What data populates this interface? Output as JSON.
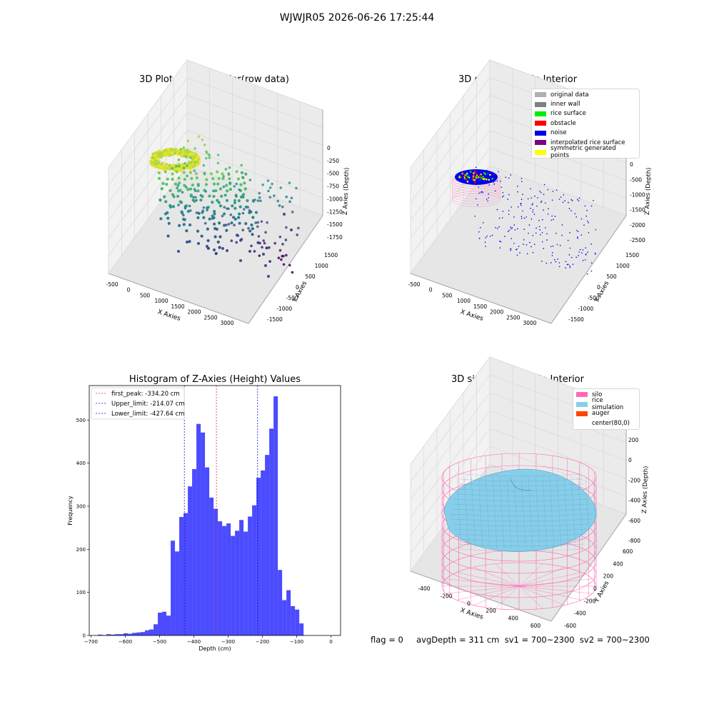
{
  "suptitle": "WJWJR05 2026-06-26 17:25:44",
  "footer": "flag = 0     avgDepth = 311 cm  sv1 = 700~2300  sv2 = 700~2300",
  "colors": {
    "hist_bar": "#4b4bff",
    "first_peak_line": "#e03030",
    "limit_line": "#1010d0",
    "silo": "#ff69b4",
    "rice": "#87ceeb",
    "auger": "#ff4500"
  },
  "chart_data": [
    {
      "type": "scatter",
      "title": "3D Plot of Silo Interior(row data)",
      "xlabel": "X Axies",
      "ylabel": "Y Axies",
      "zlabel": "Z Axies (Depth)",
      "x_ticks": [
        "-500",
        "0",
        "500",
        "1000",
        "1500",
        "2000",
        "2500",
        "3000"
      ],
      "y_ticks": [
        "-1500",
        "-1000",
        "-500",
        "0",
        "500",
        "1000",
        "1500"
      ],
      "z_ticks": [
        "0",
        "-250",
        "-500",
        "-750",
        "-1000",
        "-1250",
        "-1500",
        "-1750"
      ],
      "colormap": "viridis"
    },
    {
      "type": "scatter",
      "title": "3D classify of Silo Interior",
      "xlabel": "X Axies",
      "ylabel": "Y Axies",
      "zlabel": "Z Axies (Depth)",
      "x_ticks": [
        "-500",
        "0",
        "500",
        "1000",
        "1500",
        "2000",
        "2500",
        "3000"
      ],
      "y_ticks": [
        "-1500",
        "-1000",
        "-500",
        "0",
        "500",
        "1000",
        "1500"
      ],
      "z_ticks": [
        "500",
        "0",
        "-500",
        "-1000",
        "-1500",
        "-2000",
        "-2500"
      ],
      "legend": [
        {
          "label": "original data",
          "color": "#b0b0b0"
        },
        {
          "label": "inner wall",
          "color": "#808080"
        },
        {
          "label": "rice surface",
          "color": "#00ee00"
        },
        {
          "label": "obstacle",
          "color": "#ff0000"
        },
        {
          "label": "noise",
          "color": "#0000ee"
        },
        {
          "label": "interpolated rice surface",
          "color": "#800080"
        },
        {
          "label": "symmetric generated points",
          "color": "#ffff00"
        }
      ]
    },
    {
      "type": "bar",
      "title": "Histogram of Z-Axies (Height) Values",
      "xlabel": "Depth (cm)",
      "ylabel": "Frequency",
      "xlim": [
        -705,
        28
      ],
      "ylim": [
        0,
        580
      ],
      "x_ticks": [
        -700,
        -600,
        -500,
        -400,
        -300,
        -200,
        -100,
        0
      ],
      "y_ticks": [
        0,
        100,
        200,
        300,
        400,
        500
      ],
      "bin_width": 12.5,
      "bin_start": -680,
      "values": [
        2,
        1,
        3,
        2,
        3,
        3,
        5,
        4,
        6,
        7,
        8,
        12,
        14,
        26,
        53,
        55,
        46,
        220,
        195,
        275,
        284,
        346,
        386,
        491,
        471,
        390,
        320,
        294,
        265,
        254,
        260,
        231,
        243,
        268,
        241,
        276,
        302,
        366,
        383,
        419,
        480,
        555,
        152,
        82,
        105,
        68,
        60,
        28
      ],
      "lines": [
        {
          "label": "first_peak: -334.20 cm",
          "x": -334.2,
          "color": "#e03030"
        },
        {
          "label": "Upper_limit: -214.07 cm",
          "x": -214.07,
          "color": "#1010d0"
        },
        {
          "label": "Lower_limit: -427.64 cm",
          "x": -427.64,
          "color": "#1010d0"
        }
      ]
    },
    {
      "type": "surface",
      "title": "3D simulation of Silo Interior",
      "xlabel": "X Axies",
      "ylabel": "Y Axies",
      "zlabel": "Z Axies (Depth)",
      "x_ticks": [
        "-400",
        "-200",
        "0",
        "200",
        "400",
        "600"
      ],
      "y_ticks": [
        "-600",
        "-400",
        "-200",
        "0",
        "200",
        "400",
        "600"
      ],
      "z_ticks": [
        "200",
        "0",
        "-200",
        "-400",
        "-600",
        "-800"
      ],
      "legend": [
        {
          "label": "silo",
          "color": "#ff69b4"
        },
        {
          "label": "rice simulation",
          "color": "#87ceeb"
        },
        {
          "label": "auger",
          "color": "#ff4500"
        },
        {
          "label": "center(80,0)",
          "color": ""
        }
      ]
    }
  ]
}
